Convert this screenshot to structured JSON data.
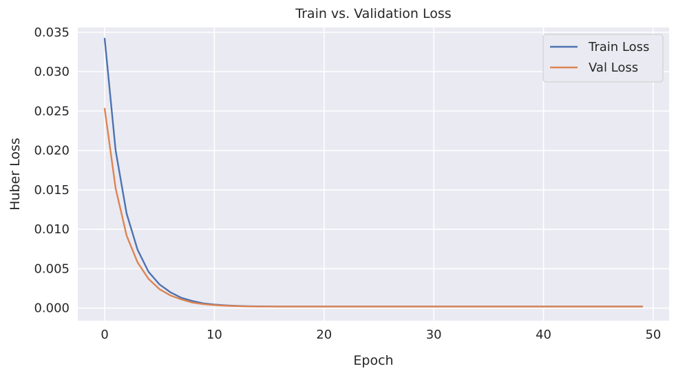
{
  "chart_data": {
    "type": "line",
    "title": "Train vs. Validation Loss",
    "xlabel": "Epoch",
    "ylabel": "Huber Loss",
    "xlim": [
      -2.45,
      51.45
    ],
    "ylim": [
      -0.0016,
      0.0356
    ],
    "xticks": [
      0,
      10,
      20,
      30,
      40,
      50
    ],
    "xtick_labels": [
      "0",
      "10",
      "20",
      "30",
      "40",
      "50"
    ],
    "yticks": [
      0.0,
      0.005,
      0.01,
      0.015,
      0.02,
      0.025,
      0.03,
      0.035
    ],
    "ytick_labels": [
      "0.000",
      "0.005",
      "0.010",
      "0.015",
      "0.020",
      "0.025",
      "0.030",
      "0.035"
    ],
    "grid": true,
    "legend_position": "top-right",
    "x": [
      0,
      1,
      2,
      3,
      4,
      5,
      6,
      7,
      8,
      9,
      10,
      11,
      12,
      13,
      14,
      15,
      16,
      17,
      18,
      19,
      20,
      21,
      22,
      23,
      24,
      25,
      26,
      27,
      28,
      29,
      30,
      31,
      32,
      33,
      34,
      35,
      36,
      37,
      38,
      39,
      40,
      41,
      42,
      43,
      44,
      45,
      46,
      47,
      48,
      49
    ],
    "series": [
      {
        "name": "Train Loss",
        "color": "#4c72b0",
        "values": [
          0.0342,
          0.02,
          0.012,
          0.0074,
          0.0046,
          0.003,
          0.002,
          0.0013,
          0.0009,
          0.0006,
          0.00045,
          0.00035,
          0.00028,
          0.00024,
          0.00022,
          0.00021,
          0.0002,
          0.0002,
          0.0002,
          0.0002,
          0.0002,
          0.0002,
          0.0002,
          0.0002,
          0.0002,
          0.0002,
          0.0002,
          0.0002,
          0.0002,
          0.0002,
          0.0002,
          0.0002,
          0.0002,
          0.0002,
          0.0002,
          0.0002,
          0.0002,
          0.0002,
          0.0002,
          0.0002,
          0.0002,
          0.0002,
          0.0002,
          0.0002,
          0.0002,
          0.0002,
          0.0002,
          0.0002,
          0.0002,
          0.0002
        ]
      },
      {
        "name": "Val Loss",
        "color": "#dd8452",
        "values": [
          0.0253,
          0.0152,
          0.0092,
          0.0058,
          0.0037,
          0.0024,
          0.0016,
          0.0011,
          0.0007,
          0.0005,
          0.00038,
          0.0003,
          0.00025,
          0.00022,
          0.0002,
          0.0002,
          0.0002,
          0.0002,
          0.0002,
          0.0002,
          0.0002,
          0.0002,
          0.0002,
          0.0002,
          0.0002,
          0.0002,
          0.0002,
          0.0002,
          0.0002,
          0.0002,
          0.0002,
          0.0002,
          0.0002,
          0.0002,
          0.0002,
          0.0002,
          0.0002,
          0.0002,
          0.0002,
          0.0002,
          0.0002,
          0.0002,
          0.0002,
          0.0002,
          0.0002,
          0.0002,
          0.0002,
          0.0002,
          0.0002,
          0.0002
        ]
      }
    ],
    "colors": {
      "plot_background": "#eaeaf2",
      "grid": "#ffffff",
      "text": "#262626"
    }
  }
}
